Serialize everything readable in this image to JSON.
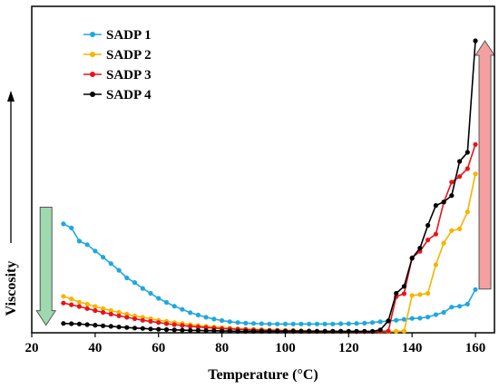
{
  "chart_data": {
    "type": "line",
    "xlabel": "Temperature (°C)",
    "ylabel": "Viscosity",
    "xlim": [
      20,
      166
    ],
    "x_ticks": [
      20,
      40,
      60,
      80,
      100,
      120,
      140,
      160
    ],
    "ylim": [
      0,
      100
    ],
    "y_ticks_visible": false,
    "grid": false,
    "legend_position": "top-left",
    "series": [
      {
        "name": "SADP 1",
        "color": "#1fa7e0",
        "x": [
          30,
          32.5,
          35,
          37.5,
          40,
          42.5,
          45,
          47.5,
          50,
          52.5,
          55,
          57.5,
          60,
          62.5,
          65,
          67.5,
          70,
          72.5,
          75,
          77.5,
          80,
          82.5,
          85,
          87.5,
          90,
          92.5,
          95,
          97.5,
          100,
          102.5,
          105,
          107.5,
          110,
          112.5,
          115,
          117.5,
          120,
          122.5,
          125,
          127.5,
          130,
          132.5,
          135,
          137.5,
          140,
          142.5,
          145,
          147.5,
          150,
          152.5,
          155,
          157.5,
          160
        ],
        "y": [
          37.3,
          35.9,
          31.4,
          30.2,
          28.0,
          25.9,
          23.7,
          21.4,
          18.8,
          17.2,
          15.2,
          13.5,
          11.8,
          10.4,
          9.1,
          8.0,
          6.9,
          6.1,
          5.3,
          4.7,
          4.2,
          3.8,
          3.5,
          3.3,
          3.2,
          3.1,
          3.0,
          3.0,
          3.0,
          3.0,
          3.0,
          3.0,
          3.0,
          3.0,
          3.0,
          3.1,
          3.1,
          3.2,
          3.3,
          3.5,
          3.8,
          4.0,
          4.3,
          4.6,
          4.9,
          5.0,
          5.4,
          6.2,
          7.0,
          8.8,
          9.1,
          9.8,
          14.8
        ]
      },
      {
        "name": "SADP 2",
        "color": "#f5b400",
        "x": [
          30,
          32.5,
          35,
          37.5,
          40,
          42.5,
          45,
          47.5,
          50,
          52.5,
          55,
          57.5,
          60,
          62.5,
          65,
          67.5,
          70,
          72.5,
          75,
          77.5,
          80,
          82.5,
          85,
          87.5,
          90,
          92.5,
          95,
          97.5,
          100,
          102.5,
          105,
          107.5,
          110,
          112.5,
          115,
          117.5,
          120,
          122.5,
          125,
          127.5,
          130,
          132.5,
          135,
          137.5,
          140,
          142.5,
          145,
          147.5,
          150,
          152.5,
          155,
          157.5,
          160
        ],
        "y": [
          12.5,
          11.6,
          10.5,
          9.8,
          9.0,
          8.3,
          7.6,
          7.0,
          6.4,
          5.8,
          5.3,
          4.8,
          4.3,
          3.9,
          3.5,
          3.2,
          2.8,
          2.5,
          2.2,
          2.0,
          1.8,
          1.6,
          1.4,
          1.3,
          1.2,
          1.1,
          1.0,
          0.9,
          0.8,
          0.8,
          0.7,
          0.7,
          0.6,
          0.6,
          0.5,
          0.5,
          0.5,
          0.4,
          0.4,
          0.4,
          0.4,
          0.4,
          0.5,
          0.6,
          12.8,
          13.1,
          13.5,
          23.3,
          30.7,
          35.0,
          35.6,
          41.4,
          54.4
        ]
      },
      {
        "name": "SADP 3",
        "color": "#e8141b",
        "x": [
          30,
          32.5,
          35,
          37.5,
          40,
          42.5,
          45,
          47.5,
          50,
          52.5,
          55,
          57.5,
          60,
          62.5,
          65,
          67.5,
          70,
          72.5,
          75,
          77.5,
          80,
          82.5,
          85,
          87.5,
          90,
          92.5,
          95,
          97.5,
          100,
          102.5,
          105,
          107.5,
          110,
          112.5,
          115,
          117.5,
          120,
          122.5,
          125,
          127.5,
          130,
          132.5,
          135,
          137.5,
          140,
          142.5,
          145,
          147.5,
          150,
          152.5,
          155,
          157.5,
          160
        ],
        "y": [
          10.2,
          9.6,
          9.0,
          8.3,
          7.6,
          7.0,
          6.4,
          5.8,
          5.3,
          4.8,
          4.3,
          3.9,
          3.5,
          3.1,
          2.8,
          2.5,
          2.2,
          2.0,
          1.8,
          1.6,
          1.4,
          1.3,
          1.2,
          1.1,
          1.0,
          0.9,
          0.8,
          0.8,
          0.7,
          0.7,
          0.6,
          0.6,
          0.5,
          0.5,
          0.5,
          0.5,
          0.4,
          0.4,
          0.4,
          0.4,
          0.5,
          0.6,
          12.4,
          13.4,
          25.7,
          27.9,
          31.8,
          33.8,
          44.7,
          51.6,
          53.5,
          56.2,
          64.5
        ]
      },
      {
        "name": "SADP 4",
        "color": "#000000",
        "x": [
          30,
          32.5,
          35,
          37.5,
          40,
          42.5,
          45,
          47.5,
          50,
          52.5,
          55,
          57.5,
          60,
          62.5,
          65,
          67.5,
          70,
          72.5,
          75,
          77.5,
          80,
          82.5,
          85,
          87.5,
          90,
          92.5,
          95,
          97.5,
          100,
          102.5,
          105,
          107.5,
          110,
          112.5,
          115,
          117.5,
          120,
          122.5,
          125,
          127.5,
          130,
          132.5,
          135,
          137.5,
          140,
          142.5,
          145,
          147.5,
          150,
          152.5,
          155,
          157.5,
          160
        ],
        "y": [
          3.2,
          3.1,
          3.0,
          2.8,
          2.6,
          2.4,
          2.2,
          2.0,
          1.8,
          1.6,
          1.5,
          1.3,
          1.2,
          1.1,
          1.0,
          0.9,
          0.8,
          0.8,
          0.7,
          0.7,
          0.6,
          0.6,
          0.5,
          0.5,
          0.5,
          0.5,
          0.5,
          0.5,
          0.5,
          0.5,
          0.5,
          0.5,
          0.5,
          0.5,
          0.5,
          0.5,
          0.5,
          0.5,
          0.5,
          0.5,
          1.0,
          4.1,
          13.5,
          15.9,
          25.5,
          29.0,
          36.8,
          43.6,
          44.8,
          47.0,
          58.7,
          61.8,
          100.0
        ]
      }
    ],
    "annotations": [
      {
        "type": "arrow",
        "color": "#9ed9b0",
        "direction": "down",
        "x": 24.5,
        "y_from": 43,
        "y_to": 2.6
      },
      {
        "type": "arrow",
        "color": "#f4a0a0",
        "direction": "up",
        "x": 163,
        "y_from": 15,
        "y_to": 100
      }
    ]
  }
}
